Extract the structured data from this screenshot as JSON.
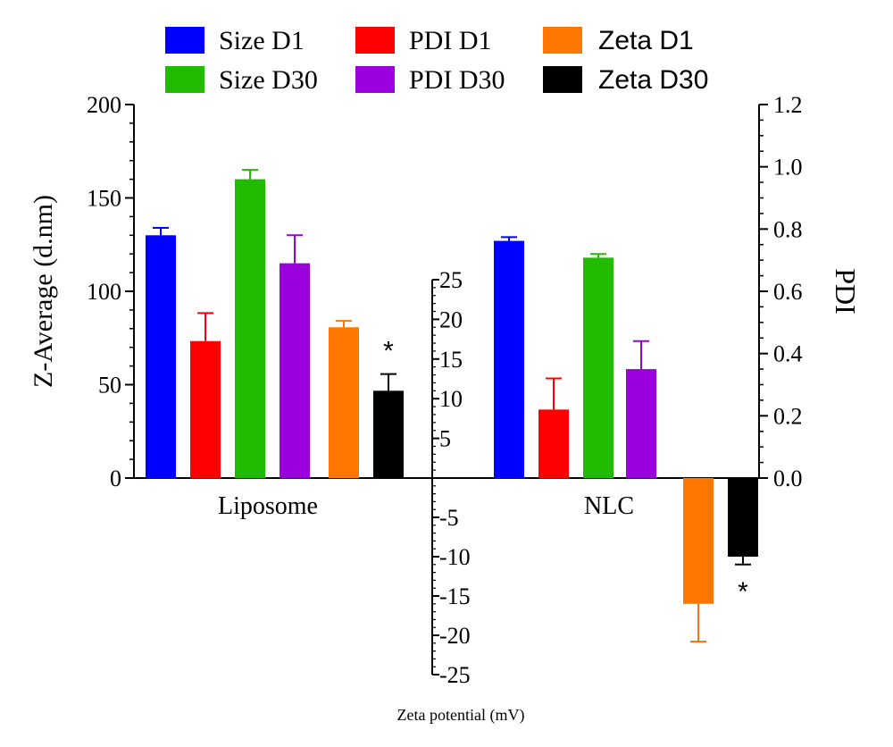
{
  "chart_data": {
    "type": "bar",
    "groups": [
      "Liposome",
      "NLC"
    ],
    "series": [
      {
        "name": "Size D1",
        "axis": "Z-Average (d.nm)",
        "color": "#0000ff",
        "values": [
          130,
          127
        ],
        "errors": [
          4,
          2
        ]
      },
      {
        "name": "PDI D1",
        "axis": "PDI",
        "color": "#ff0000",
        "values": [
          0.44,
          0.22
        ],
        "errors": [
          0.09,
          0.1
        ]
      },
      {
        "name": "Size D30",
        "axis": "Z-Average (d.nm)",
        "color": "#22bb00",
        "values": [
          160,
          118
        ],
        "errors": [
          5,
          2
        ]
      },
      {
        "name": "PDI D30",
        "axis": "PDI",
        "color": "#9900dd",
        "values": [
          0.69,
          0.35
        ],
        "errors": [
          0.09,
          0.09
        ]
      },
      {
        "name": "Zeta D1",
        "axis": "Zeta potential (mV)",
        "color": "#ff7700",
        "values": [
          19,
          -16
        ],
        "errors": [
          0.8,
          4.8
        ]
      },
      {
        "name": "Zeta D30",
        "axis": "Zeta potential (mV)",
        "color": "#000000",
        "values": [
          11,
          -10
        ],
        "errors": [
          2.1,
          1.0
        ]
      }
    ],
    "annotations": [
      {
        "text": "*",
        "group": "Liposome",
        "series": "Zeta D30"
      },
      {
        "text": "*",
        "group": "NLC",
        "series": "Zeta D30"
      }
    ],
    "left_axis": {
      "label": "Z-Average (d.nm)",
      "ylim": [
        0,
        200
      ],
      "ticks": [
        "0",
        "50",
        "100",
        "150",
        "200"
      ]
    },
    "right_axis": {
      "label": "PDI",
      "ylim": [
        0,
        1.2
      ],
      "ticks": [
        "0.0",
        "0.2",
        "0.4",
        "0.6",
        "0.8",
        "1.0",
        "1.2"
      ]
    },
    "zeta_axis": {
      "label": "Zeta potential (mV)",
      "ylim": [
        -25,
        25
      ],
      "ticks": [
        "25",
        "20",
        "15",
        "10",
        "5",
        "-5",
        "-10",
        "-15",
        "-20",
        "-25"
      ]
    },
    "legend": {
      "placement": "top",
      "columns": 3
    },
    "grid": false
  }
}
